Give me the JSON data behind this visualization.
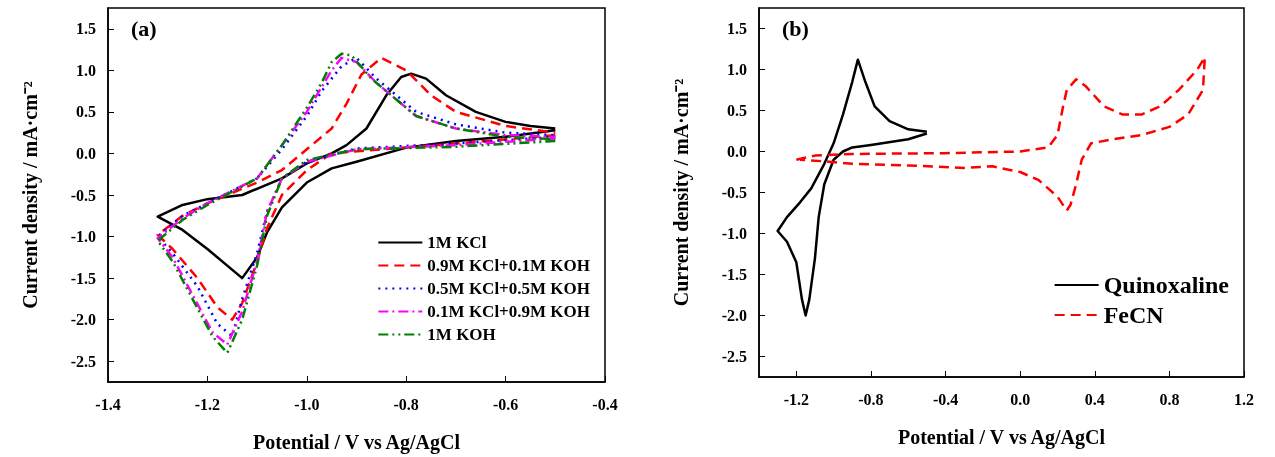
{
  "chart_data": [
    {
      "type": "line",
      "title": "(a)",
      "xlabel": "Potential / V vs Ag/AgCl",
      "ylabel": "Current density / mA·cm⁻²",
      "xlim": [
        -1.4,
        -0.4
      ],
      "xticks": [
        -1.4,
        -1.2,
        {
          "value": -1,
          "label": "-1.0"
        },
        -0.8,
        -0.6,
        -0.4
      ],
      "ylim": [
        -2.75,
        1.75
      ],
      "yticks": [
        -2.5,
        {
          "value": -2,
          "label": "-2.0"
        },
        -1.5,
        {
          "value": -1,
          "label": "-1.0"
        },
        -0.5,
        {
          "value": 0,
          "label": "0.0"
        },
        0.5,
        {
          "value": 1,
          "label": "1.0"
        },
        1.5
      ],
      "legend": "bottom right",
      "series": [
        {
          "name": "1M KCl",
          "color": "#000000",
          "line_style": "solid",
          "x": [
            -0.5,
            -0.6,
            -0.7,
            -0.8,
            -0.9,
            -0.95,
            -1.0,
            -1.05,
            -1.08,
            -1.1,
            -1.13,
            -1.2,
            -1.25,
            -1.3,
            -1.25,
            -1.2,
            -1.13,
            -1.05,
            -1.0,
            -0.95,
            -0.92,
            -0.88,
            -0.84,
            -0.81,
            -0.79,
            -0.76,
            -0.72,
            -0.66,
            -0.6,
            -0.55,
            -0.5
          ],
          "values": [
            0.28,
            0.2,
            0.15,
            0.07,
            -0.1,
            -0.18,
            -0.35,
            -0.65,
            -0.95,
            -1.25,
            -1.5,
            -1.15,
            -0.92,
            -0.76,
            -0.62,
            -0.55,
            -0.5,
            -0.3,
            -0.12,
            0.0,
            0.1,
            0.3,
            0.7,
            0.92,
            0.96,
            0.9,
            0.7,
            0.5,
            0.38,
            0.33,
            0.3
          ]
        },
        {
          "name": "0.9M KCl+0.1M KOH",
          "color": "#ff0000",
          "line_style": "dashed",
          "x": [
            -0.5,
            -0.7,
            -0.85,
            -0.95,
            -1.0,
            -1.05,
            -1.08,
            -1.1,
            -1.13,
            -1.15,
            -1.18,
            -1.22,
            -1.27,
            -1.3,
            -1.25,
            -1.2,
            -1.1,
            -1.05,
            -1.0,
            -0.95,
            -0.92,
            -0.89,
            -0.85,
            -0.8,
            -0.75,
            -0.7,
            -0.6,
            -0.5
          ],
          "values": [
            0.22,
            0.12,
            0.05,
            0.0,
            -0.2,
            -0.5,
            -0.9,
            -1.3,
            -1.8,
            -2.0,
            -1.85,
            -1.5,
            -1.15,
            -0.98,
            -0.75,
            -0.6,
            -0.35,
            -0.2,
            0.05,
            0.3,
            0.6,
            0.95,
            1.15,
            1.0,
            0.7,
            0.5,
            0.33,
            0.25
          ]
        },
        {
          "name": "0.5M KCl+0.5M KOH",
          "color": "#0000ff",
          "line_style": "dotted",
          "x": [
            -0.5,
            -0.7,
            -0.9,
            -1.0,
            -1.05,
            -1.08,
            -1.1,
            -1.13,
            -1.15,
            -1.18,
            -1.22,
            -1.27,
            -1.3,
            -1.25,
            -1.2,
            -1.1,
            -1.05,
            -1.0,
            -0.97,
            -0.93,
            -0.9,
            -0.86,
            -0.82,
            -0.78,
            -0.7,
            -0.6,
            -0.5
          ],
          "values": [
            0.2,
            0.12,
            0.06,
            -0.1,
            -0.3,
            -0.7,
            -1.2,
            -1.75,
            -2.2,
            -2.05,
            -1.6,
            -1.2,
            -1.0,
            -0.75,
            -0.6,
            -0.3,
            0.05,
            0.45,
            0.75,
            1.05,
            1.15,
            0.9,
            0.7,
            0.5,
            0.35,
            0.25,
            0.22
          ]
        },
        {
          "name": "0.1M KCl+0.9M KOH",
          "color": "#ff00ff",
          "line_style": "dashdot",
          "x": [
            -0.5,
            -0.7,
            -0.9,
            -1.0,
            -1.05,
            -1.08,
            -1.1,
            -1.13,
            -1.16,
            -1.19,
            -1.23,
            -1.27,
            -1.3,
            -1.25,
            -1.2,
            -1.1,
            -1.05,
            -1.0,
            -0.97,
            -0.95,
            -0.93,
            -0.9,
            -0.86,
            -0.82,
            -0.78,
            -0.7,
            -0.6,
            -0.5
          ],
          "values": [
            0.18,
            0.1,
            0.05,
            -0.1,
            -0.3,
            -0.7,
            -1.3,
            -1.9,
            -2.3,
            -2.15,
            -1.7,
            -1.25,
            -1.02,
            -0.78,
            -0.6,
            -0.3,
            0.1,
            0.5,
            0.8,
            1.0,
            1.15,
            1.1,
            0.85,
            0.65,
            0.45,
            0.3,
            0.22,
            0.2
          ]
        },
        {
          "name": "1M KOH",
          "color": "#008000",
          "line_style": "dashdotdot",
          "x": [
            -0.5,
            -0.7,
            -0.9,
            -1.0,
            -1.05,
            -1.08,
            -1.1,
            -1.13,
            -1.16,
            -1.19,
            -1.23,
            -1.27,
            -1.3,
            -1.25,
            -1.2,
            -1.1,
            -1.05,
            -1.0,
            -0.97,
            -0.95,
            -0.93,
            -0.91,
            -0.87,
            -0.82,
            -0.78,
            -0.7,
            -0.6,
            -0.5
          ],
          "values": [
            0.15,
            0.08,
            0.05,
            -0.08,
            -0.3,
            -0.75,
            -1.35,
            -2.0,
            -2.4,
            -2.2,
            -1.75,
            -1.3,
            -1.05,
            -0.8,
            -0.62,
            -0.3,
            0.1,
            0.55,
            0.85,
            1.1,
            1.2,
            1.18,
            0.9,
            0.65,
            0.45,
            0.3,
            0.2,
            0.17
          ]
        }
      ]
    },
    {
      "type": "line",
      "title": "(b)",
      "xlabel": "Potential / V vs Ag/AgCl",
      "ylabel": "Current density / mA·cm⁻²",
      "xlim": [
        -1.4,
        1.2
      ],
      "xticks": [
        -1.2,
        -0.8,
        -0.4,
        {
          "value": 0,
          "label": "0.0"
        },
        0.4,
        0.8,
        1.2
      ],
      "ylim": [
        -2.75,
        1.75
      ],
      "yticks": [
        -2.5,
        {
          "value": -2,
          "label": "-2.0"
        },
        -1.5,
        {
          "value": -1,
          "label": "-1.0"
        },
        -0.5,
        {
          "value": 0,
          "label": "0.0"
        },
        0.5,
        {
          "value": 1,
          "label": "1.0"
        },
        1.5
      ],
      "legend": "bottom right",
      "series": [
        {
          "name": "Quinoxaline",
          "color": "#000000",
          "line_style": "solid",
          "x": [
            -0.5,
            -0.6,
            -0.8,
            -0.9,
            -0.95,
            -1.0,
            -1.05,
            -1.08,
            -1.1,
            -1.13,
            -1.15,
            -1.17,
            -1.2,
            -1.25,
            -1.3,
            -1.25,
            -1.18,
            -1.12,
            -1.05,
            -1.0,
            -0.95,
            -0.9,
            -0.87,
            -0.83,
            -0.78,
            -0.7,
            -0.6,
            -0.5
          ],
          "values": [
            0.22,
            0.15,
            0.08,
            0.05,
            0.0,
            -0.1,
            -0.4,
            -0.8,
            -1.3,
            -1.8,
            -2.0,
            -1.8,
            -1.35,
            -1.1,
            -0.97,
            -0.8,
            -0.62,
            -0.45,
            -0.15,
            0.1,
            0.45,
            0.85,
            1.12,
            0.85,
            0.55,
            0.37,
            0.27,
            0.24
          ]
        },
        {
          "name": "FeCN",
          "color": "#ff0000",
          "line_style": "dashed",
          "x": [
            -1.2,
            -1.1,
            -0.9,
            -0.4,
            0.0,
            0.15,
            0.2,
            0.23,
            0.25,
            0.3,
            0.35,
            0.45,
            0.55,
            0.65,
            0.75,
            0.85,
            0.95,
            0.99,
            0.98,
            0.9,
            0.8,
            0.65,
            0.5,
            0.38,
            0.33,
            0.3,
            0.27,
            0.25,
            0.2,
            0.1,
            0.0,
            -0.15,
            -0.3,
            -0.6,
            -0.9,
            -1.05,
            -1.18
          ],
          "values": [
            -0.1,
            -0.05,
            -0.03,
            -0.02,
            0.0,
            0.05,
            0.2,
            0.55,
            0.75,
            0.88,
            0.8,
            0.55,
            0.45,
            0.45,
            0.55,
            0.75,
            1.0,
            1.15,
            0.75,
            0.45,
            0.3,
            0.2,
            0.15,
            0.1,
            -0.1,
            -0.4,
            -0.65,
            -0.72,
            -0.55,
            -0.35,
            -0.25,
            -0.18,
            -0.2,
            -0.17,
            -0.15,
            -0.12,
            -0.1
          ]
        }
      ]
    }
  ]
}
